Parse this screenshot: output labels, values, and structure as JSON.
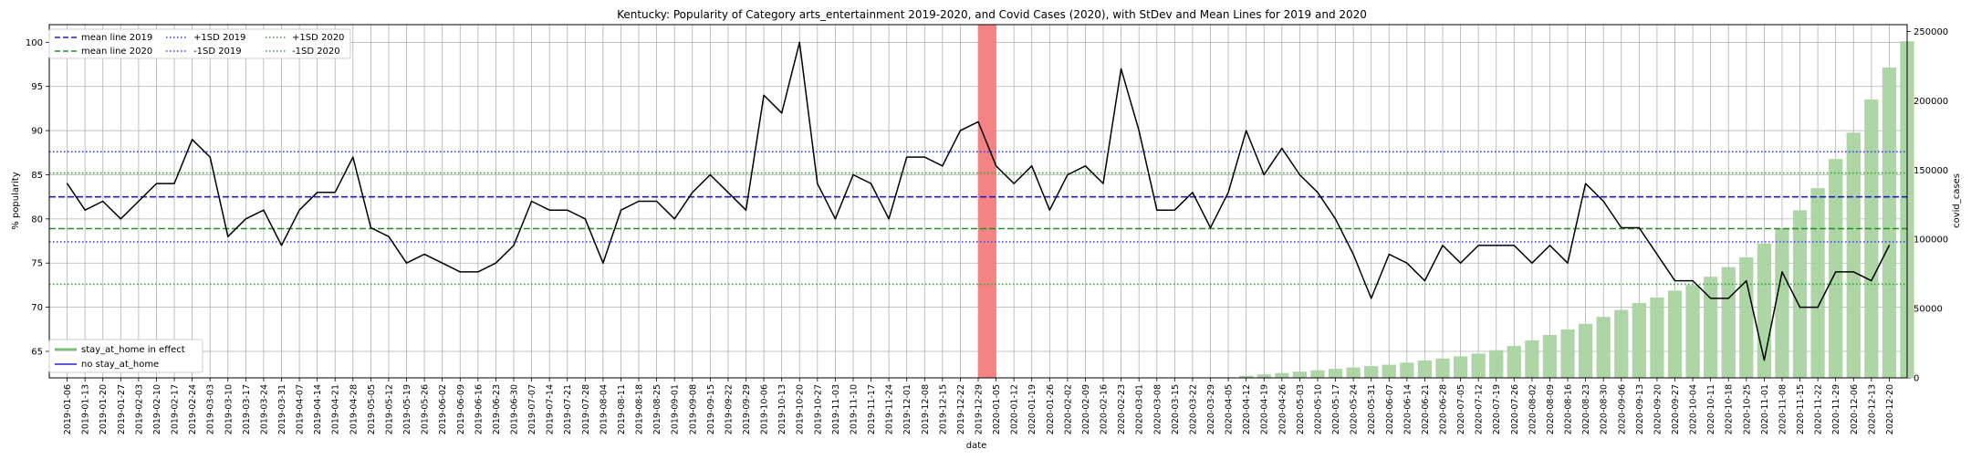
{
  "chart_data": {
    "type": "line",
    "title": "Kentucky: Popularity of Category arts_entertainment 2019-2020, and Covid Cases (2020), with StDev and Mean Lines for 2019 and 2020",
    "xlabel": "date",
    "ylabel": "% popularity",
    "y2label": "covid_cases",
    "ylim": [
      62,
      102
    ],
    "y2lim": [
      0,
      255000
    ],
    "yticks": [
      65,
      70,
      75,
      80,
      85,
      90,
      95,
      100
    ],
    "y2ticks": [
      0,
      50000,
      100000,
      150000,
      200000,
      250000
    ],
    "grid": true,
    "dates": [
      "2019-01-06",
      "2019-01-13",
      "2019-01-20",
      "2019-01-27",
      "2019-02-03",
      "2019-02-10",
      "2019-02-17",
      "2019-02-24",
      "2019-03-03",
      "2019-03-10",
      "2019-03-17",
      "2019-03-24",
      "2019-03-31",
      "2019-04-07",
      "2019-04-14",
      "2019-04-21",
      "2019-04-28",
      "2019-05-05",
      "2019-05-12",
      "2019-05-19",
      "2019-05-26",
      "2019-06-02",
      "2019-06-09",
      "2019-06-16",
      "2019-06-23",
      "2019-06-30",
      "2019-07-07",
      "2019-07-14",
      "2019-07-21",
      "2019-07-28",
      "2019-08-04",
      "2019-08-11",
      "2019-08-18",
      "2019-08-25",
      "2019-09-01",
      "2019-09-08",
      "2019-09-15",
      "2019-09-22",
      "2019-09-29",
      "2019-10-06",
      "2019-10-13",
      "2019-10-20",
      "2019-10-27",
      "2019-11-03",
      "2019-11-10",
      "2019-11-17",
      "2019-11-24",
      "2019-12-01",
      "2019-12-08",
      "2019-12-15",
      "2019-12-22",
      "2019-12-29",
      "2020-01-05",
      "2020-01-12",
      "2020-01-19",
      "2020-01-26",
      "2020-02-02",
      "2020-02-09",
      "2020-02-16",
      "2020-02-23",
      "2020-03-01",
      "2020-03-08",
      "2020-03-15",
      "2020-03-22",
      "2020-03-29",
      "2020-04-05",
      "2020-04-12",
      "2020-04-19",
      "2020-04-26",
      "2020-05-03",
      "2020-05-10",
      "2020-05-17",
      "2020-05-24",
      "2020-05-31",
      "2020-06-07",
      "2020-06-14",
      "2020-06-21",
      "2020-06-28",
      "2020-07-05",
      "2020-07-12",
      "2020-07-19",
      "2020-07-26",
      "2020-08-02",
      "2020-08-09",
      "2020-08-16",
      "2020-08-23",
      "2020-08-30",
      "2020-09-06",
      "2020-09-13",
      "2020-09-20",
      "2020-09-27",
      "2020-10-04",
      "2020-10-11",
      "2020-10-18",
      "2020-10-25",
      "2020-11-01",
      "2020-11-08",
      "2020-11-15",
      "2020-11-22",
      "2020-11-29",
      "2020-12-06",
      "2020-12-13",
      "2020-12-20"
    ],
    "popularity": [
      84,
      81,
      82,
      80,
      82,
      84,
      84,
      89,
      87,
      78,
      80,
      81,
      77,
      81,
      83,
      83,
      87,
      79,
      78,
      75,
      76,
      75,
      74,
      74,
      75,
      77,
      82,
      81,
      81,
      80,
      75,
      81,
      82,
      82,
      80,
      83,
      85,
      83,
      81,
      94,
      92,
      100,
      84,
      80,
      85,
      84,
      80,
      87,
      87,
      86,
      90,
      91,
      86,
      84,
      86,
      81,
      85,
      86,
      84,
      97,
      90,
      81,
      81,
      83,
      79,
      83,
      90,
      85,
      88,
      85,
      83,
      80,
      76,
      71,
      76,
      75,
      73,
      77,
      75,
      77,
      77,
      77,
      75,
      77,
      75,
      84,
      82,
      79,
      79,
      76,
      73,
      73,
      71,
      71,
      73,
      64,
      74,
      70,
      70,
      74,
      74,
      73,
      77
    ],
    "covid_cases": [
      0,
      0,
      0,
      0,
      0,
      0,
      0,
      0,
      0,
      0,
      0,
      0,
      0,
      0,
      0,
      0,
      0,
      0,
      0,
      0,
      0,
      0,
      0,
      0,
      0,
      0,
      0,
      0,
      0,
      0,
      0,
      0,
      0,
      0,
      0,
      0,
      0,
      0,
      0,
      0,
      0,
      0,
      0,
      0,
      0,
      0,
      0,
      0,
      0,
      0,
      0,
      0,
      0,
      0,
      0,
      0,
      0,
      0,
      0,
      0,
      0,
      0,
      0,
      0,
      0,
      0,
      1500,
      2500,
      3500,
      4500,
      5500,
      6500,
      7500,
      8500,
      9500,
      11000,
      12500,
      14000,
      15500,
      17500,
      20000,
      23000,
      27000,
      31000,
      35000,
      39000,
      44000,
      49000,
      54000,
      58000,
      63000,
      67000,
      73000,
      80000,
      87000,
      97000,
      108000,
      121000,
      137000,
      158000,
      177000,
      201000,
      224000,
      243000
    ],
    "stay_at_home_effect": [],
    "highlight_week": [
      "2019-12-29",
      "2020-01-05"
    ],
    "mean_2019": 82.5,
    "sd_plus_2019": 87.6,
    "sd_minus_2019": 77.4,
    "mean_2020": 78.9,
    "sd_plus_2020": 85.2,
    "sd_minus_2020": 72.6,
    "legend_top": {
      "placement": "top-left",
      "entries": [
        "mean line 2019",
        "mean line 2020",
        "+1SD 2019",
        "-1SD 2019",
        "+1SD 2020",
        "-1SD 2020"
      ]
    },
    "legend_bottom": {
      "placement": "bottom-left",
      "entries": [
        "stay_at_home in effect",
        "no stay_at_home"
      ]
    },
    "colors": {
      "line": "#000000",
      "mean_2019": "#1f1fb4",
      "mean_2020": "#2a8a2a",
      "sd_2019": "#3a3ad6",
      "sd_2020": "#3a9a3a",
      "bars": "#a9d3a0",
      "highlight": "#f47c7c",
      "stay_at_home": "#7bbf7b",
      "no_stay_at_home": "#5a5ae0",
      "grid": "#b0b0b0"
    }
  }
}
